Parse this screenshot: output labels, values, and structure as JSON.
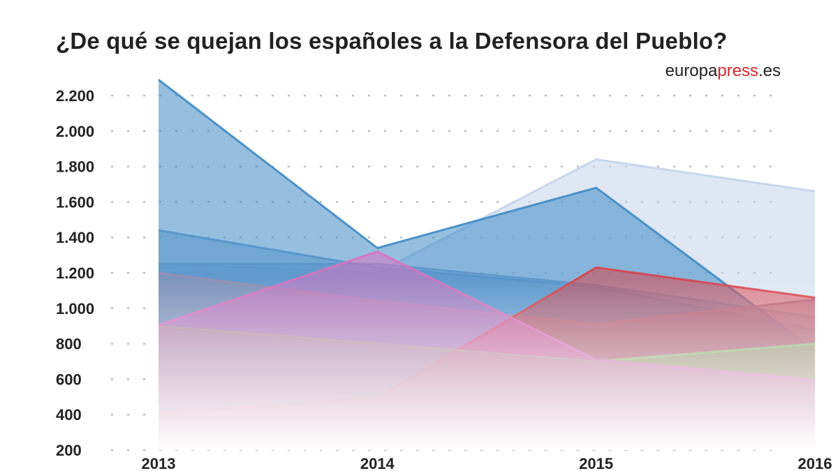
{
  "chart_data": {
    "type": "area",
    "title": "¿De qué se quejan los españoles a la Defensora del Pueblo?",
    "source_logo": {
      "part1": "europa",
      "part2": "press",
      "part3": ".es"
    },
    "categories": [
      "2013",
      "2014",
      "2015",
      "2016"
    ],
    "ylim": [
      200,
      2200
    ],
    "yticks": [
      200,
      400,
      600,
      800,
      1000,
      1200,
      1400,
      1600,
      1800,
      2000,
      2200
    ],
    "ytick_labels": [
      "200",
      "400",
      "600",
      "800",
      "1.000",
      "1.200",
      "1.400",
      "1.600",
      "1.800",
      "2.000",
      "2.200"
    ],
    "grid": "dotted horizontal",
    "series": [
      {
        "values": [
          1250,
          1200,
          1840,
          1660
        ],
        "color": "#c3d3ea"
      },
      {
        "values": [
          1250,
          1250,
          1130,
          950
        ],
        "color": "#7fa6d0"
      },
      {
        "values": [
          1440,
          1230,
          1120,
          880
        ],
        "color": "#6e9fcf"
      },
      {
        "values": [
          2290,
          1340,
          1680,
          760
        ],
        "color": "#3f8ac4"
      },
      {
        "values": [
          1200,
          1040,
          910,
          1050
        ],
        "color": "#9a8fb0"
      },
      {
        "values": [
          410,
          495,
          1230,
          1060
        ],
        "color": "#d9434a"
      },
      {
        "values": [
          900,
          800,
          700,
          800
        ],
        "color": "#8fbf7a"
      },
      {
        "values": [
          905,
          1320,
          710,
          595
        ],
        "color": "#d972c0"
      }
    ]
  }
}
